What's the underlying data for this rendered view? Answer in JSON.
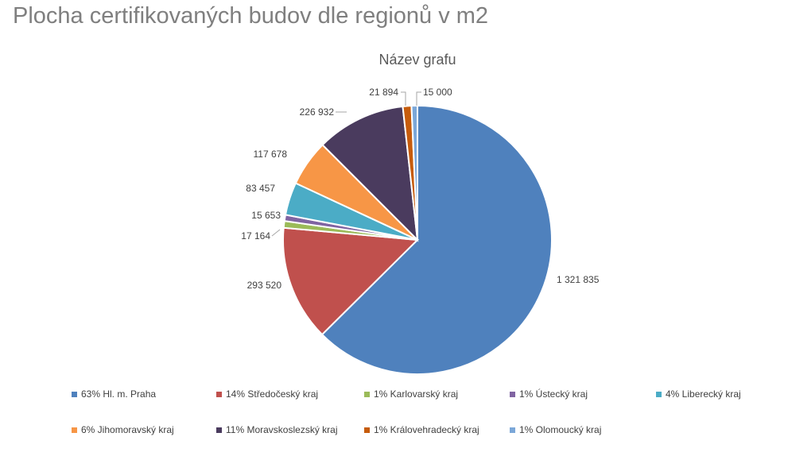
{
  "page": {
    "title": "Plocha certifikovaných budov dle regionů v m2"
  },
  "chart_data": {
    "type": "pie",
    "title": "Název grafu",
    "start_angle_deg": 0,
    "slices": [
      {
        "label": "Hl. m. Praha",
        "value": 1321835,
        "value_label": "1 321 835",
        "percent_label": "63%",
        "color": "#4F81BD"
      },
      {
        "label": "Středočeský kraj",
        "value": 293520,
        "value_label": "293 520",
        "percent_label": "14%",
        "color": "#C0504D"
      },
      {
        "label": "Karlovarský kraj",
        "value": 17164,
        "value_label": "17 164",
        "percent_label": "1%",
        "color": "#9BBB59"
      },
      {
        "label": "Ústecký kraj",
        "value": 15653,
        "value_label": "15 653",
        "percent_label": "1%",
        "color": "#8064A2"
      },
      {
        "label": "Liberecký kraj",
        "value": 83457,
        "value_label": "83 457",
        "percent_label": "4%",
        "color": "#4BACC6"
      },
      {
        "label": "Jihomoravský kraj",
        "value": 117678,
        "value_label": "117 678",
        "percent_label": "6%",
        "color": "#F79646"
      },
      {
        "label": "Moravskoslezský kraj",
        "value": 226932,
        "value_label": "226 932",
        "percent_label": "11%",
        "color": "#4A3B5E"
      },
      {
        "label": "Královehradecký kraj",
        "value": 21894,
        "value_label": "21 894",
        "percent_label": "1%",
        "color": "#C65C0C"
      },
      {
        "label": "Olomoucký kraj",
        "value": 15000,
        "value_label": "15 000",
        "percent_label": "1%",
        "color": "#7BA7D8"
      }
    ],
    "legend_position": "bottom"
  }
}
